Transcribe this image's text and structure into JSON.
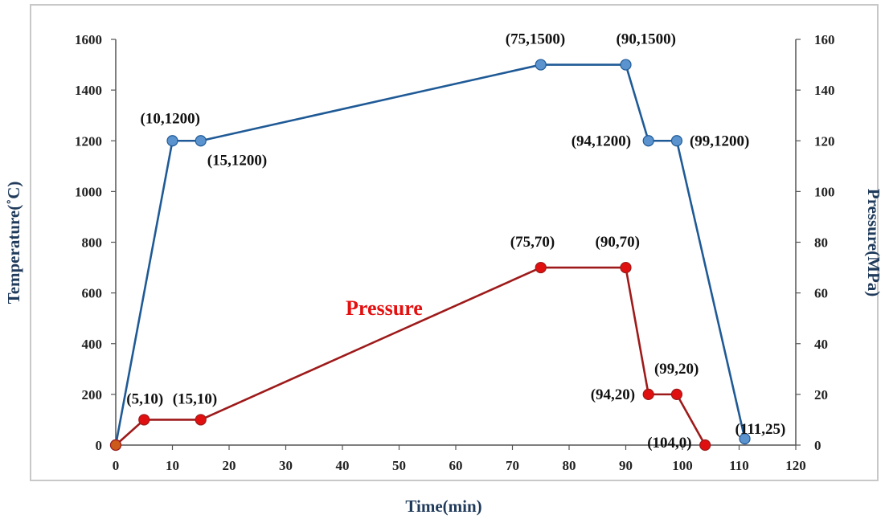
{
  "chart_data": {
    "type": "line",
    "xlabel": "Time(min)",
    "ylabel": "Temperature(˚C)",
    "y2label": "Pressure(MPa)",
    "xlim": [
      0,
      120
    ],
    "ylim": [
      0,
      1600
    ],
    "y2lim": [
      0,
      160
    ],
    "x_ticks": [
      "0",
      "10",
      "20",
      "30",
      "40",
      "50",
      "60",
      "70",
      "80",
      "90",
      "100",
      "110",
      "120"
    ],
    "y_ticks": [
      "0",
      "200",
      "400",
      "600",
      "800",
      "1000",
      "1200",
      "1400",
      "1600"
    ],
    "y2_ticks": [
      "0",
      "20",
      "40",
      "60",
      "80",
      "100",
      "120",
      "140",
      "160"
    ],
    "grid": false,
    "series": [
      {
        "axis": "left",
        "color": "#1f5a96",
        "marker_color": "#5b93cf",
        "points": [
          {
            "x": 0,
            "y": 0,
            "label": ""
          },
          {
            "x": 10,
            "y": 1200,
            "label": "(10,1200)"
          },
          {
            "x": 15,
            "y": 1200,
            "label": "(15,1200)"
          },
          {
            "x": 75,
            "y": 1500,
            "label": "(75,1500)"
          },
          {
            "x": 90,
            "y": 1500,
            "label": "(90,1500)"
          },
          {
            "x": 94,
            "y": 1200,
            "label": "(94,1200)"
          },
          {
            "x": 99,
            "y": 1200,
            "label": "(99,1200)"
          },
          {
            "x": 111,
            "y": 25,
            "label": "(111,25)"
          }
        ]
      },
      {
        "name": "Pressure",
        "axis": "right",
        "color": "#9e1a1a",
        "marker_color": "#e01010",
        "points": [
          {
            "x": 0,
            "y": 0,
            "label": ""
          },
          {
            "x": 5,
            "y": 10,
            "label": "(5,10)"
          },
          {
            "x": 15,
            "y": 10,
            "label": "(15,10)"
          },
          {
            "x": 75,
            "y": 70,
            "label": "(75,70)"
          },
          {
            "x": 90,
            "y": 70,
            "label": "(90,70)"
          },
          {
            "x": 94,
            "y": 20,
            "label": "(94,20)"
          },
          {
            "x": 99,
            "y": 20,
            "label": "(99,20)"
          },
          {
            "x": 104,
            "y": 0,
            "label": "(104,0)"
          }
        ]
      }
    ]
  }
}
